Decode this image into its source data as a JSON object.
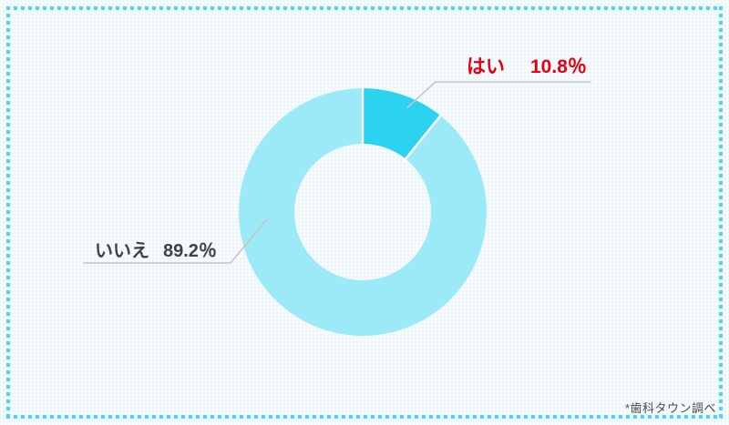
{
  "chart_data": {
    "type": "pie",
    "style": "donut",
    "categories": [
      "はい",
      "いいえ"
    ],
    "values": [
      10.8,
      89.2
    ],
    "value_labels": [
      "10.8％",
      "89.2％"
    ],
    "slice_colors": [
      "#2bd3f1",
      "#9ce9f8"
    ],
    "donut_hole_ratio": 0.55,
    "start_angle_deg": 0,
    "direction": "clockwise",
    "legend_position": "callout-labels",
    "title": "",
    "source_note": "*歯科タウン調べ"
  },
  "labels": {
    "yes": {
      "name": "はい",
      "value": "10.8％",
      "color": "#e60012"
    },
    "no": {
      "name": "いいえ",
      "value": "89.2％",
      "color": "#3e4147"
    }
  },
  "footer": {
    "source_note": "*歯科タウン調べ"
  },
  "theme": {
    "background_color": "#eff7fb",
    "frame_dot_color": "#46d7f6",
    "hole_color": "#f2f9fc",
    "slice_divider_color": "#ffffff",
    "leader_line_yes_color": "#c7c7c7",
    "leader_line_no_color": "#ccc2c2"
  }
}
